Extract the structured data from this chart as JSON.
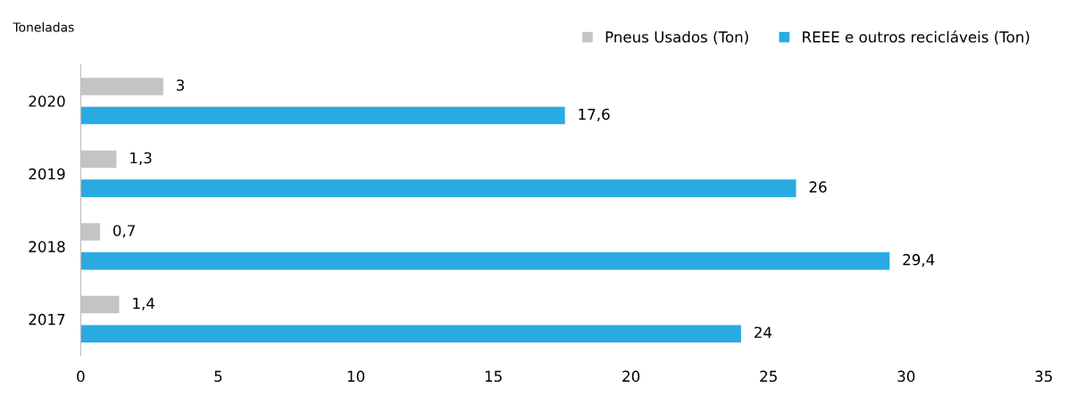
{
  "chart_data": {
    "type": "bar",
    "orientation": "horizontal",
    "title": "Toneladas",
    "categories": [
      "2020",
      "2019",
      "2018",
      "2017"
    ],
    "series": [
      {
        "name": "Pneus Usados (Ton)",
        "color": "#c4c4c4",
        "values": [
          3,
          1.3,
          0.7,
          1.4
        ],
        "value_labels": [
          "3",
          "1,3",
          "0,7",
          "1,4"
        ]
      },
      {
        "name": "REEE e outros recicláveis (Ton)",
        "color": "#29abe2",
        "values": [
          17.6,
          26,
          29.4,
          24
        ],
        "value_labels": [
          "17,6",
          "26",
          "29,4",
          "24"
        ]
      }
    ],
    "xlim": [
      0,
      35
    ],
    "xticks": [
      0,
      5,
      10,
      15,
      20,
      25,
      30,
      35
    ],
    "grid": false,
    "legend": "top right"
  }
}
